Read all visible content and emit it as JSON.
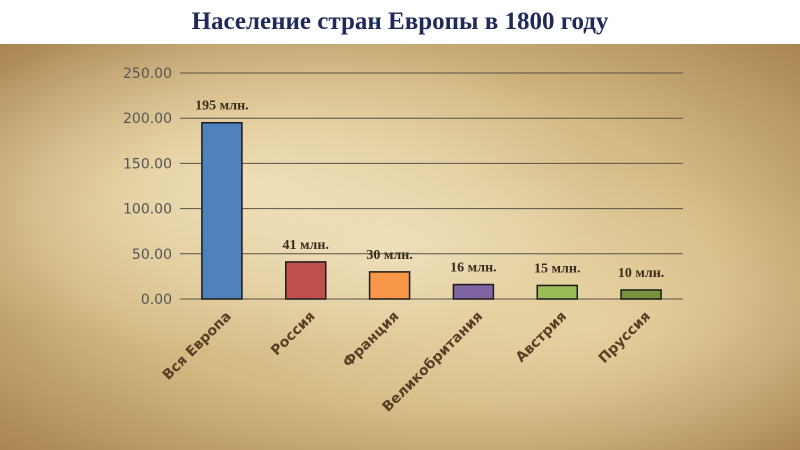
{
  "slide": {
    "title": "Население стран Европы в 1800 году"
  },
  "chart_data": {
    "type": "bar",
    "title": "",
    "xlabel": "",
    "ylabel": "",
    "ylim": [
      0,
      250
    ],
    "yticks": [
      "0.00",
      "50.00",
      "100.00",
      "150.00",
      "200.00",
      "250.00"
    ],
    "categories": [
      "Вся Европа",
      "Россия",
      "Франция",
      "Великобритания",
      "Австрия",
      "Пруссия"
    ],
    "values": [
      195,
      41,
      30,
      16,
      15,
      10
    ],
    "data_labels": [
      "195 млн.",
      "41 млн.",
      "30 млн.",
      "16 млн.",
      "15 млн.",
      "10 млн."
    ],
    "colors": [
      "#4f81bd",
      "#c0504d",
      "#f79646",
      "#8064a2",
      "#9bbb59",
      "#77933c"
    ],
    "grid": true,
    "legend": "none"
  }
}
